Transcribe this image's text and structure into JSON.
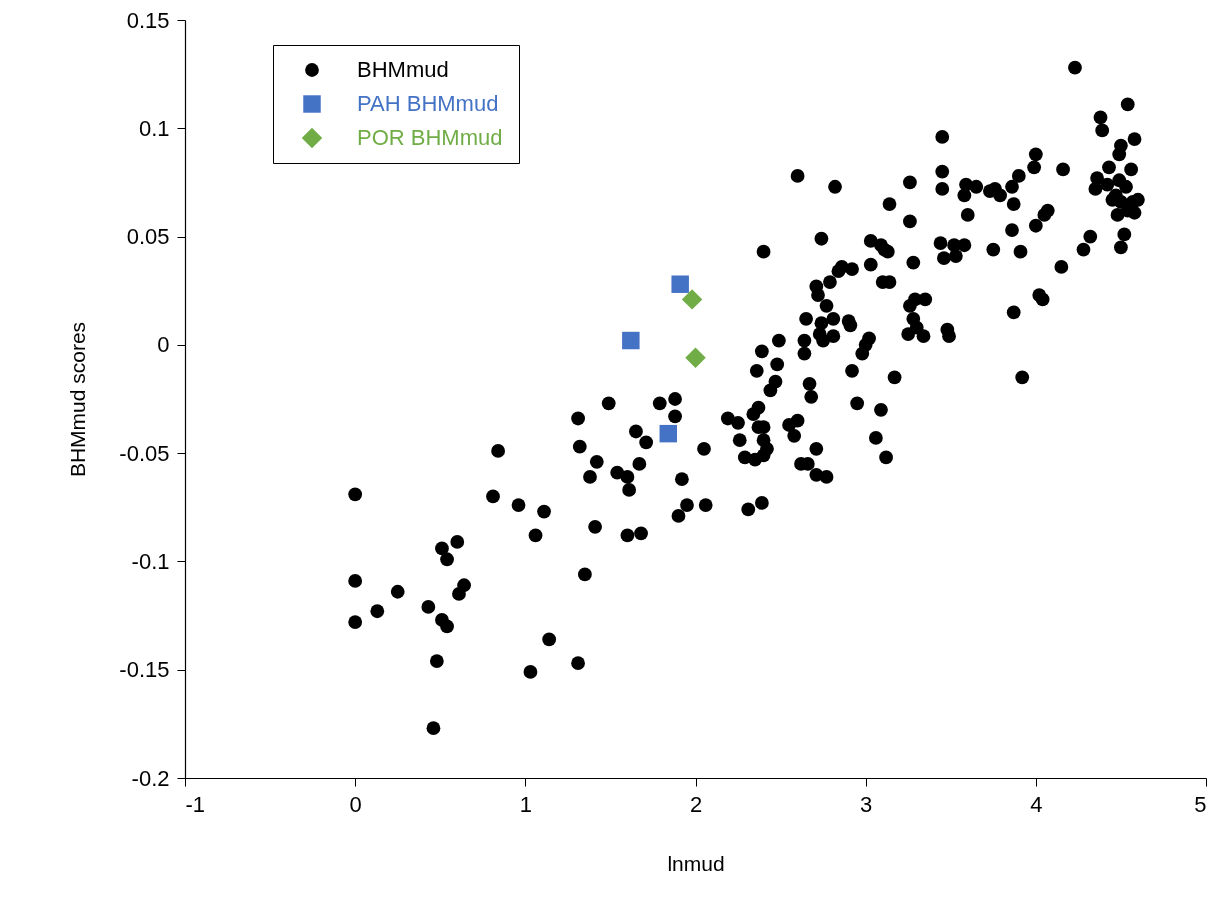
{
  "chart_data": {
    "type": "scatter",
    "xlabel": "lnmud",
    "ylabel": "BHMmud  scores",
    "xlim": [
      -1,
      5
    ],
    "xticks": [
      -1,
      0,
      1,
      2,
      3,
      4,
      5
    ],
    "ylim": [
      -0.2,
      0.15
    ],
    "yticks": [
      -0.2,
      -0.15,
      -0.1,
      -0.05,
      0,
      0.05,
      0.1,
      0.15
    ],
    "grid": false,
    "legend": "top left",
    "series": [
      {
        "name": "BHMmud",
        "color": "#000000",
        "marker": "circle",
        "x": [
          0,
          0,
          0,
          0.13,
          0.25,
          0.43,
          0.51,
          0.54,
          0.6,
          0.51,
          0.54,
          0.61,
          0.64,
          0.48,
          0.46,
          0.84,
          0.81,
          0.96,
          1.06,
          1.11,
          1.14,
          1.03,
          1.31,
          1.35,
          1.31,
          1.32,
          1.38,
          1.42,
          1.41,
          1.49,
          1.54,
          1.6,
          1.61,
          1.6,
          1.65,
          1.67,
          1.71,
          1.68,
          1.79,
          1.88,
          1.88,
          1.92,
          1.9,
          1.95,
          2.05,
          2.06,
          2.19,
          2.25,
          2.26,
          2.29,
          2.31,
          2.34,
          2.35,
          2.37,
          2.37,
          2.39,
          2.4,
          2.42,
          2.36,
          2.39,
          2.4,
          2.44,
          2.47,
          2.48,
          2.49,
          2.4,
          2.4,
          2.55,
          2.58,
          2.6,
          2.6,
          2.65,
          2.64,
          2.64,
          2.67,
          2.68,
          2.62,
          2.66,
          2.71,
          2.72,
          2.74,
          2.73,
          2.75,
          2.71,
          2.71,
          2.77,
          2.74,
          2.77,
          2.79,
          2.81,
          2.81,
          2.82,
          2.84,
          2.86,
          2.9,
          2.91,
          2.92,
          2.92,
          2.95,
          2.98,
          3.0,
          3.02,
          3.03,
          3.03,
          3.06,
          3.09,
          3.09,
          3.11,
          3.12,
          3.1,
          3.14,
          3.14,
          3.17,
          3.13,
          3.25,
          3.26,
          3.26,
          3.26,
          3.28,
          3.28,
          3.3,
          3.29,
          3.34,
          3.35,
          3.45,
          3.45,
          3.45,
          3.44,
          3.46,
          3.48,
          3.49,
          3.52,
          3.53,
          3.58,
          3.58,
          3.59,
          3.6,
          3.65,
          3.73,
          3.76,
          3.79,
          3.75,
          3.86,
          3.86,
          3.87,
          3.87,
          3.9,
          3.91,
          3.92,
          3.99,
          4.0,
          4.0,
          4.02,
          4.04,
          4.05,
          4.07,
          4.16,
          4.15,
          4.23,
          4.28,
          4.32,
          4.35,
          4.36,
          4.38,
          4.39,
          4.43,
          4.42,
          4.47,
          4.45,
          4.49,
          4.5,
          4.48,
          4.5,
          4.49,
          4.52,
          4.5,
          4.53,
          4.54,
          4.54,
          4.56,
          4.58,
          4.58,
          4.6,
          4.57
        ],
        "values": [
          -0.069,
          -0.109,
          -0.128,
          -0.123,
          -0.114,
          -0.121,
          -0.094,
          -0.099,
          -0.091,
          -0.127,
          -0.13,
          -0.115,
          -0.111,
          -0.146,
          -0.177,
          -0.049,
          -0.07,
          -0.074,
          -0.088,
          -0.077,
          -0.136,
          -0.151,
          -0.147,
          -0.106,
          -0.034,
          -0.047,
          -0.061,
          -0.054,
          -0.084,
          -0.027,
          -0.059,
          -0.061,
          -0.067,
          -0.088,
          -0.04,
          -0.055,
          -0.045,
          -0.087,
          -0.027,
          -0.025,
          -0.033,
          -0.062,
          -0.079,
          -0.074,
          -0.048,
          -0.074,
          -0.034,
          -0.036,
          -0.044,
          -0.052,
          -0.076,
          -0.032,
          -0.053,
          -0.038,
          -0.029,
          -0.073,
          -0.044,
          -0.048,
          -0.012,
          -0.003,
          -0.038,
          -0.021,
          -0.017,
          -0.009,
          0.002,
          0.043,
          -0.051,
          -0.037,
          -0.042,
          -0.035,
          0.078,
          0.012,
          0.002,
          -0.004,
          -0.018,
          -0.024,
          -0.055,
          -0.055,
          0.027,
          0.023,
          0.01,
          0.005,
          0.002,
          -0.06,
          -0.048,
          -0.061,
          0.049,
          0.018,
          0.029,
          0.012,
          0.004,
          0.073,
          0.034,
          0.036,
          0.011,
          0.009,
          0.035,
          -0.012,
          -0.027,
          -0.004,
          0,
          0.003,
          0.037,
          0.048,
          -0.043,
          -0.03,
          0.046,
          0.044,
          -0.052,
          0.029,
          0.029,
          0.065,
          -0.015,
          0.043,
          0.005,
          0.018,
          0.057,
          0.075,
          0.038,
          0.012,
          0.008,
          0.021,
          0.004,
          0.021,
          0.096,
          0.08,
          0.072,
          0.047,
          0.04,
          0.007,
          0.004,
          0.046,
          0.041,
          0.046,
          0.069,
          0.074,
          0.06,
          0.073,
          0.071,
          0.072,
          0.069,
          0.044,
          0.073,
          0.053,
          0.065,
          0.015,
          0.078,
          0.043,
          -0.015,
          0.082,
          0.088,
          0.055,
          0.023,
          0.021,
          0.06,
          0.062,
          0.081,
          0.036,
          0.128,
          0.044,
          0.05,
          0.072,
          0.077,
          0.105,
          0.099,
          0.082,
          0.074,
          0.069,
          0.067,
          0.076,
          0.066,
          0.06,
          0.092,
          0.088,
          0.051,
          0.045,
          0.073,
          0.062,
          0.111,
          0.081,
          0.095,
          0.061,
          0.067,
          0.066
        ]
      },
      {
        "name": "PAH  BHMmud",
        "color": "#4472c4",
        "marker": "square",
        "x": [
          1.62,
          1.91,
          1.84
        ],
        "values": [
          0.002,
          0.028,
          -0.041
        ]
      },
      {
        "name": "POR BHMmud",
        "color": "#70ad47",
        "marker": "diamond",
        "x": [
          1.98,
          2.0
        ],
        "values": [
          0.021,
          -0.006
        ]
      }
    ]
  }
}
